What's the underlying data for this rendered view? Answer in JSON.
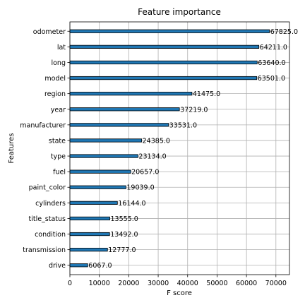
{
  "chart_data": {
    "type": "bar",
    "orientation": "horizontal",
    "title": "Feature importance",
    "xlabel": "F score",
    "ylabel": "Features",
    "categories": [
      "drive",
      "transmission",
      "condition",
      "title_status",
      "cylinders",
      "paint_color",
      "fuel",
      "type",
      "state",
      "manufacturer",
      "year",
      "region",
      "model",
      "long",
      "lat",
      "odometer"
    ],
    "values": [
      6067.0,
      12777.0,
      13492.0,
      13555.0,
      16144.0,
      19039.0,
      20657.0,
      23134.0,
      24385.0,
      33531.0,
      37219.0,
      41475.0,
      63501.0,
      63640.0,
      64211.0,
      67825.0
    ],
    "value_labels": [
      "6067.0",
      "12777.0",
      "13492.0",
      "13555.0",
      "16144.0",
      "19039.0",
      "20657.0",
      "23134.0",
      "24385.0",
      "33531.0",
      "37219.0",
      "41475.0",
      "63501.0",
      "63640.0",
      "64211.0",
      "67825.0"
    ],
    "xlim": [
      0,
      74607
    ],
    "xticks": [
      0,
      10000,
      20000,
      30000,
      40000,
      50000,
      60000,
      70000
    ],
    "xtick_labels": [
      "0",
      "10000",
      "20000",
      "30000",
      "40000",
      "50000",
      "60000",
      "70000"
    ],
    "grid": true,
    "bar_color": "#1f77b4",
    "bar_edge_color": "#000000",
    "grid_color": "#b0b0b0"
  }
}
